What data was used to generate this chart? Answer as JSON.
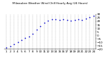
{
  "title": "Milwaukee Weather Wind Chill Hourly Avg (24 Hours)",
  "title_fontsize": 3.0,
  "x_values": [
    1,
    2,
    3,
    4,
    5,
    6,
    7,
    8,
    9,
    10,
    11,
    12,
    13,
    14,
    15,
    16,
    17,
    18,
    19,
    20,
    21,
    22,
    23,
    24
  ],
  "y_values": [
    -18,
    -16,
    -13,
    -10,
    -7,
    -4,
    -2,
    2,
    8,
    13,
    18,
    21,
    23,
    23,
    22,
    23,
    22,
    21,
    22,
    23,
    22,
    24,
    26,
    28
  ],
  "dot_color": "#0000cc",
  "dot_size": 1.5,
  "grid_color": "#888888",
  "bg_color": "#ffffff",
  "ylim": [
    -20,
    30
  ],
  "xlabel_fontsize": 3.0,
  "ylabel_fontsize": 3.0
}
